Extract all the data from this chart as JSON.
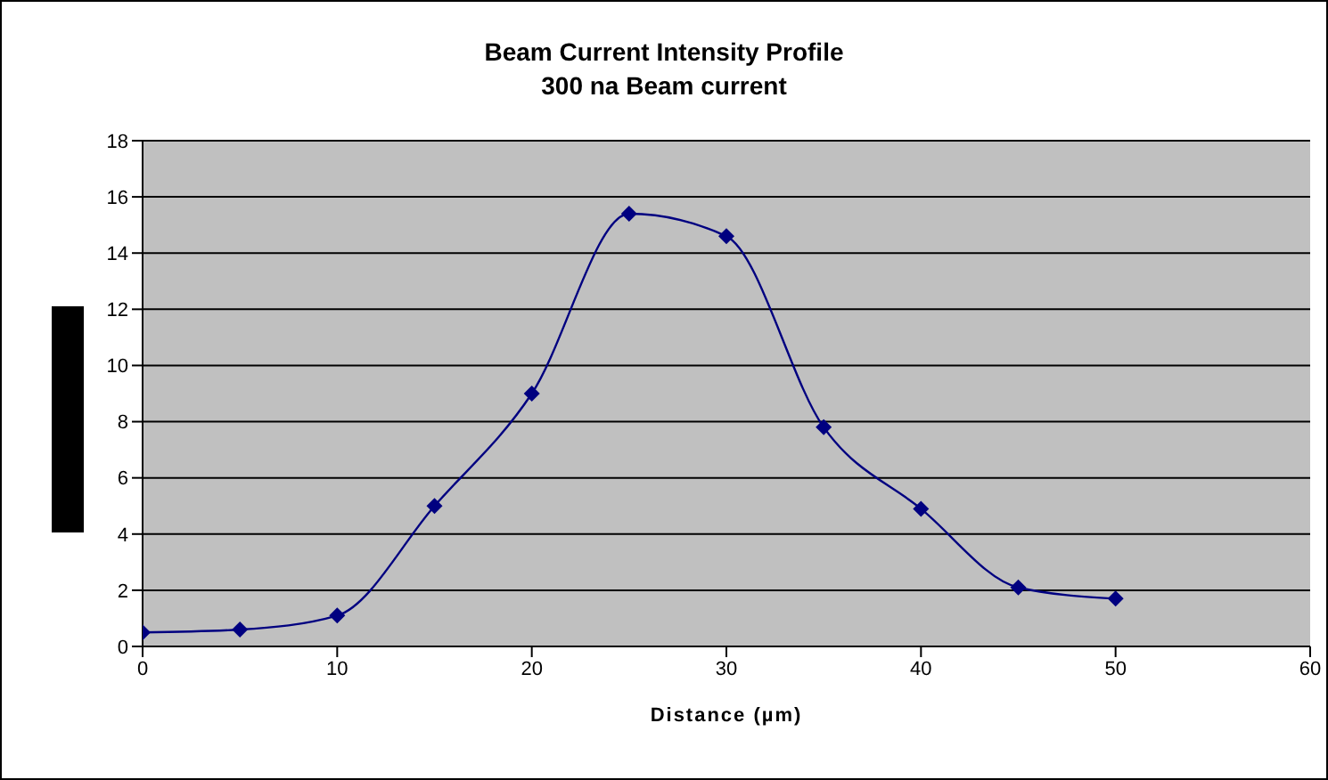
{
  "chart_data": {
    "type": "line",
    "title": "Beam Current Intensity Profile",
    "subtitle": "300 na Beam current",
    "xlabel": "Distance (µm)",
    "x": [
      0,
      5,
      10,
      15,
      20,
      25,
      30,
      35,
      40,
      45,
      50
    ],
    "series": [
      {
        "color": "#000080",
        "values": [
          0.5,
          0.6,
          1.1,
          5,
          9,
          15.4,
          14.6,
          7.8,
          4.9,
          2.1,
          1.7
        ]
      }
    ],
    "xlim": [
      0,
      60
    ],
    "xticks": [
      0,
      10,
      20,
      30,
      40,
      50,
      60
    ],
    "ylim": [
      0,
      18
    ],
    "yticks": [
      0,
      2,
      4,
      6,
      8,
      10,
      12,
      14,
      16,
      18
    ],
    "grid": "y",
    "legend": false,
    "marker": "diamond",
    "line_style": "solid"
  }
}
